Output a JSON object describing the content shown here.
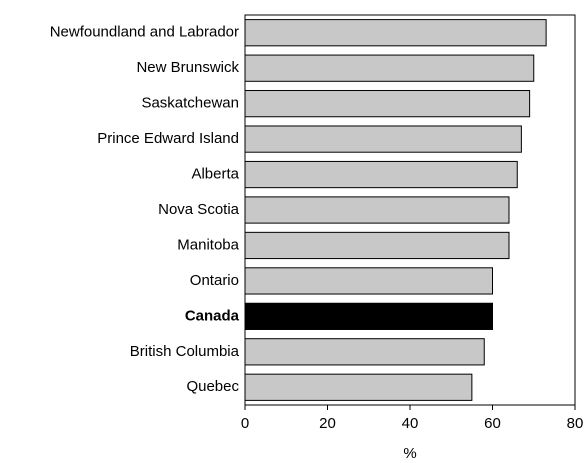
{
  "chart_data": {
    "type": "hbar",
    "categories": [
      "Newfoundland and Labrador",
      "New Brunswick",
      "Saskatchewan",
      "Prince Edward Island",
      "Alberta",
      "Nova Scotia",
      "Manitoba",
      "Ontario",
      "Canada",
      "British Columbia",
      "Quebec"
    ],
    "values": [
      73,
      70,
      69,
      67,
      66,
      64,
      64,
      60,
      60,
      58,
      55
    ],
    "colors": [
      "#c8c8c8",
      "#c8c8c8",
      "#c8c8c8",
      "#c8c8c8",
      "#c8c8c8",
      "#c8c8c8",
      "#c8c8c8",
      "#c8c8c8",
      "#000000",
      "#c8c8c8",
      "#c8c8c8"
    ],
    "label_bold": [
      false,
      false,
      false,
      false,
      false,
      false,
      false,
      false,
      true,
      false,
      false
    ],
    "xlim": [
      0,
      80
    ],
    "xticks": [
      0,
      20,
      40,
      60,
      80
    ],
    "xlabel": "%",
    "grid": false
  }
}
